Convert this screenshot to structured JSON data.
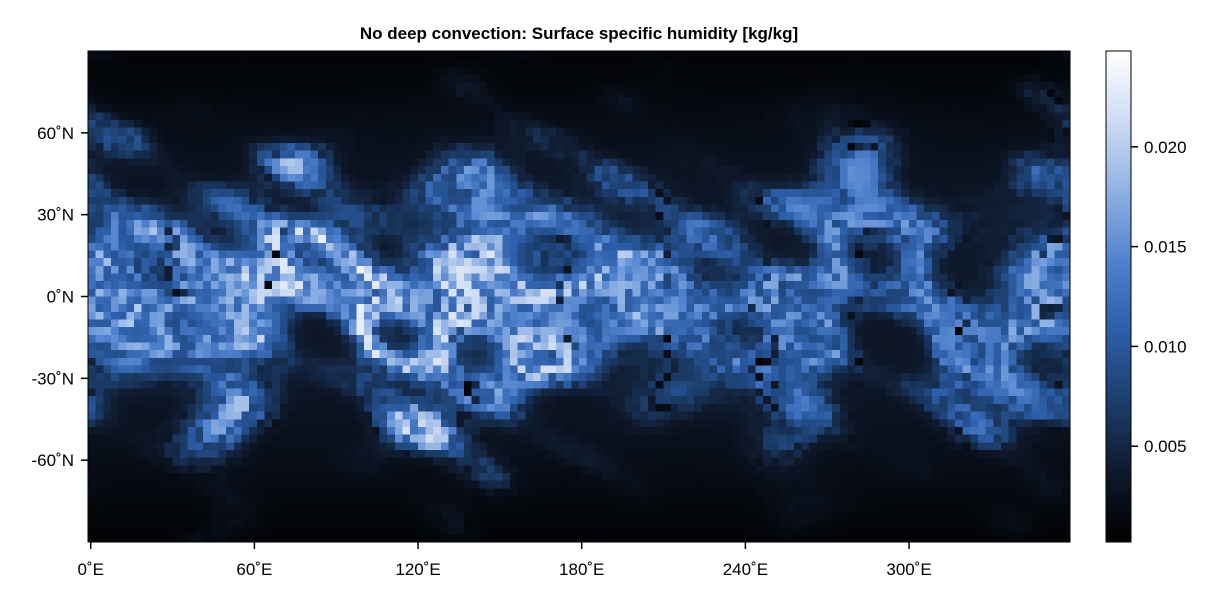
{
  "chart_data": {
    "type": "heatmap",
    "title": "No deep convection: Surface specific humidity [kg/kg]",
    "x": {
      "tick_values": [
        0,
        60,
        120,
        180,
        240,
        300
      ],
      "tick_labels": [
        "0˚E",
        "60˚E",
        "120˚E",
        "180˚E",
        "240˚E",
        "300˚E"
      ],
      "range": [
        -1,
        359
      ]
    },
    "y": {
      "tick_values": [
        60,
        30,
        0,
        -30,
        -60
      ],
      "tick_labels": [
        "60˚N",
        "30˚N",
        "0˚N",
        "-30˚N",
        "-60˚N"
      ],
      "range": [
        -90,
        90
      ]
    },
    "colorbar": {
      "range": [
        0.0002,
        0.0248
      ],
      "tick_values": [
        0.02,
        0.015,
        0.01,
        0.005
      ],
      "tick_labels": [
        "0.020",
        "0.015",
        "0.010",
        "0.005"
      ],
      "colormap": [
        "#000000",
        "#0f1a2d",
        "#1c3f6e",
        "#2d5ea8",
        "#5082cd",
        "#8fb1e3",
        "#cddbf2",
        "#ffffff"
      ]
    },
    "field_description": {
      "grid": [
        128,
        64
      ],
      "equator_max": 0.0215,
      "pole_min": 0.0005,
      "pattern": "zonally banded humidity maximum in the tropics with filamentary eddies; peaks near 0-180E"
    },
    "grid_visible": false
  }
}
